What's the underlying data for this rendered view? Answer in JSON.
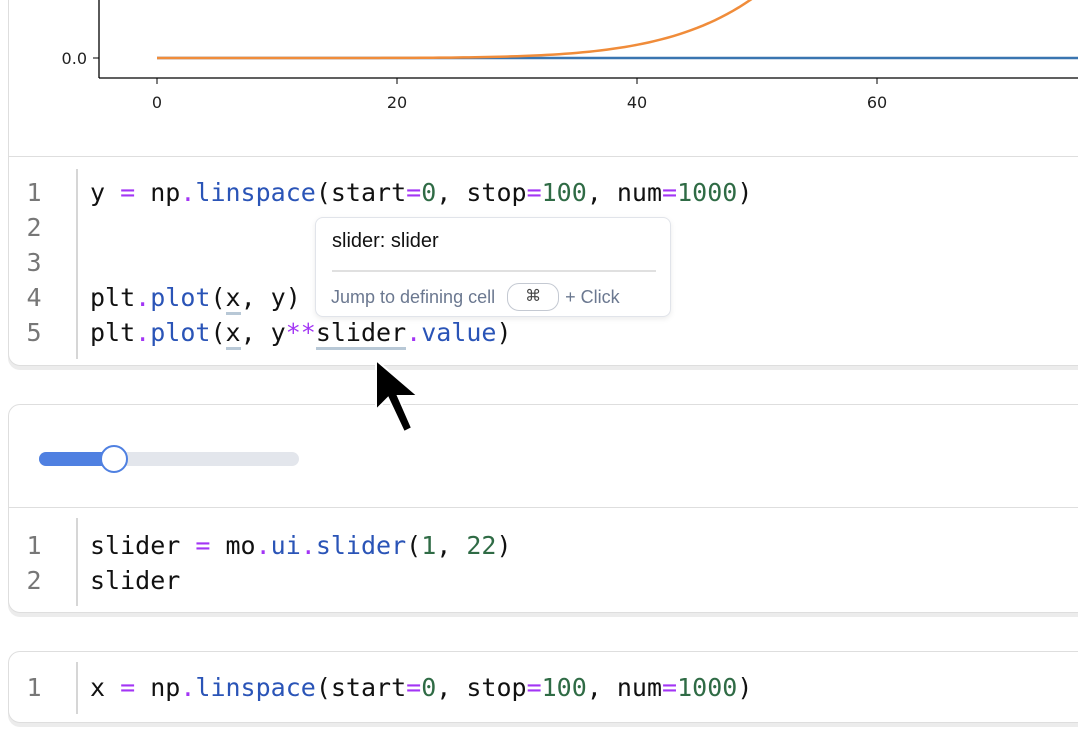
{
  "chart_data": {
    "type": "line",
    "xticks": [
      "0",
      "20",
      "40",
      "60"
    ],
    "yticks": [
      "0.0"
    ],
    "series": [
      {
        "expr": "y",
        "color": "#3a75b0"
      },
      {
        "expr": "y**slider.value",
        "color": "#f08c3a"
      }
    ],
    "x_range": [
      0,
      100
    ]
  },
  "cells": [
    {
      "lines": [
        "1",
        "2",
        "3",
        "4",
        "5"
      ]
    },
    {
      "lines": [
        "1",
        "2"
      ]
    },
    {
      "lines": [
        "1"
      ]
    }
  ],
  "code": {
    "c1l1": [
      "y",
      " = ",
      "np",
      ".",
      "linspace",
      "(start",
      "=",
      "0",
      ", stop",
      "=",
      "100",
      ", num",
      "=",
      "1000",
      ")"
    ],
    "c1l4": [
      "plt",
      ".",
      "plot",
      "(",
      "x",
      ", y)"
    ],
    "c1l5": [
      "plt",
      ".",
      "plot",
      "(",
      "x",
      ", y",
      "**",
      "slider",
      ".",
      "value",
      ")"
    ],
    "c2l1": [
      "slider",
      " = ",
      "mo",
      ".",
      "ui",
      ".",
      "slider",
      "(",
      "1",
      ", ",
      "22",
      ")"
    ],
    "c2l2": [
      "slider"
    ],
    "c3l1": [
      "x",
      " = ",
      "np",
      ".",
      "linspace",
      "(start",
      "=",
      "0",
      ", stop",
      "=",
      "100",
      ", num",
      "=",
      "1000",
      ")"
    ]
  },
  "tooltip": {
    "title": "slider: slider",
    "hint": "Jump to defining cell",
    "key": "⌘",
    "suffix": "+ Click"
  },
  "slider": {
    "min": 1,
    "max": 22,
    "value": 7
  }
}
